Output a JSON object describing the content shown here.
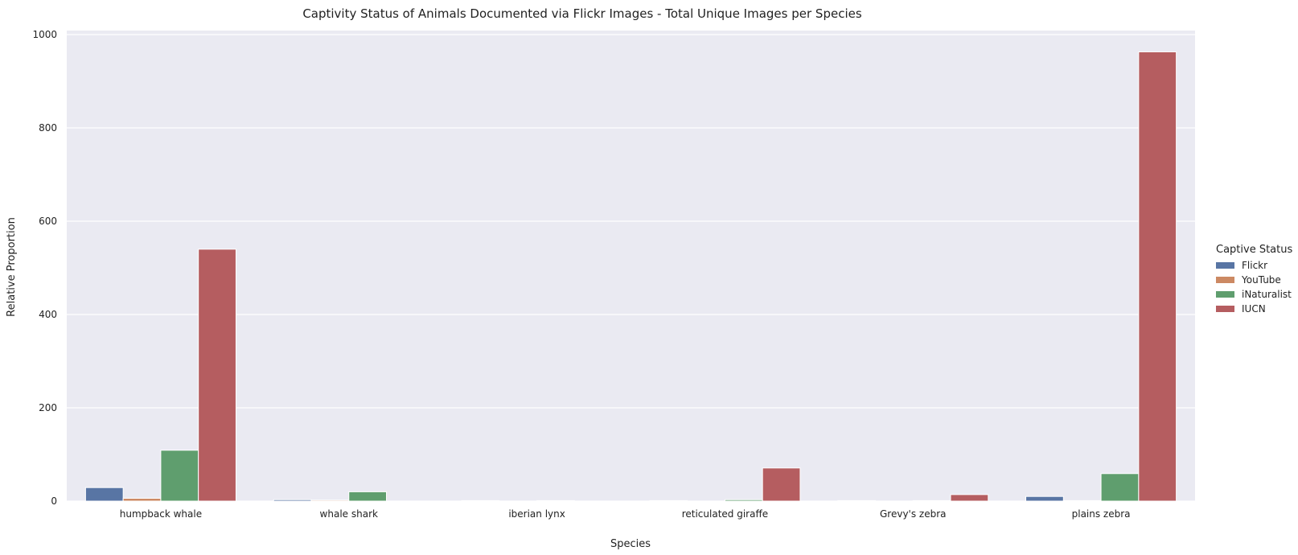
{
  "chart_data": {
    "type": "bar",
    "title": "Captivity Status of Animals Documented via Flickr Images - Total Unique Images per Species",
    "xlabel": "Species",
    "ylabel": "Relative Proportion",
    "categories": [
      "humpback whale",
      "whale shark",
      "iberian lynx",
      "reticulated giraffe",
      "Grevy's zebra",
      "plains zebra"
    ],
    "ylim": [
      0,
      1010
    ],
    "yticks": [
      0,
      200,
      400,
      600,
      800,
      1000
    ],
    "grid": true,
    "legend": {
      "title": "Captive Status",
      "placement": "right"
    },
    "series": [
      {
        "name": "Flickr",
        "color": "#5875a4",
        "values": [
          29,
          3,
          1,
          1,
          1,
          10
        ]
      },
      {
        "name": "YouTube",
        "color": "#cc8963",
        "values": [
          6,
          2,
          0,
          0,
          0,
          1
        ]
      },
      {
        "name": "iNaturalist",
        "color": "#5f9e6e",
        "values": [
          109,
          20,
          1,
          3,
          1,
          59
        ]
      },
      {
        "name": "IUCN",
        "color": "#b55d60",
        "values": [
          540,
          0,
          0,
          71,
          14,
          963
        ]
      }
    ]
  }
}
